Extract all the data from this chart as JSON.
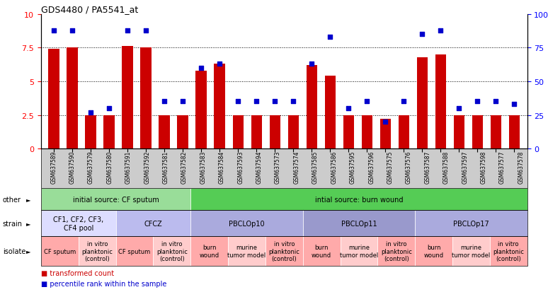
{
  "title": "GDS4480 / PA5541_at",
  "samples": [
    "GSM637589",
    "GSM637590",
    "GSM637579",
    "GSM637580",
    "GSM637591",
    "GSM637592",
    "GSM637581",
    "GSM637582",
    "GSM637583",
    "GSM637584",
    "GSM637593",
    "GSM637594",
    "GSM637573",
    "GSM637574",
    "GSM637585",
    "GSM637586",
    "GSM637595",
    "GSM637596",
    "GSM637575",
    "GSM637576",
    "GSM637587",
    "GSM637588",
    "GSM637597",
    "GSM637598",
    "GSM637577",
    "GSM637578"
  ],
  "bar_values": [
    7.4,
    7.5,
    2.5,
    2.5,
    7.6,
    7.5,
    2.5,
    2.5,
    5.8,
    6.3,
    2.5,
    2.5,
    2.5,
    2.5,
    6.2,
    5.4,
    2.5,
    2.5,
    2.2,
    2.5,
    6.8,
    7.0,
    2.5,
    2.5,
    2.5,
    2.5
  ],
  "dot_values": [
    88,
    88,
    27,
    30,
    88,
    88,
    35,
    35,
    60,
    63,
    35,
    35,
    35,
    35,
    63,
    83,
    30,
    35,
    20,
    35,
    85,
    88,
    30,
    35,
    35,
    33
  ],
  "bar_color": "#cc0000",
  "dot_color": "#0000cc",
  "ylim_left": [
    0,
    10
  ],
  "ylim_right": [
    0,
    100
  ],
  "yticks_left": [
    0,
    2.5,
    5.0,
    7.5,
    10
  ],
  "yticks_right": [
    0,
    25,
    50,
    75,
    100
  ],
  "ytick_labels_left": [
    "0",
    "2.5",
    "5",
    "7.5",
    "10"
  ],
  "ytick_labels_right": [
    "0",
    "25",
    "50",
    "75",
    "100%"
  ],
  "hlines": [
    2.5,
    5.0,
    7.5
  ],
  "annotation_rows": [
    {
      "label": "other",
      "segments": [
        {
          "text": "initial source: CF sputum",
          "start": 0,
          "end": 8,
          "color": "#99dd99"
        },
        {
          "text": "intial source: burn wound",
          "start": 8,
          "end": 26,
          "color": "#55cc55"
        }
      ]
    },
    {
      "label": "strain",
      "segments": [
        {
          "text": "CF1, CF2, CF3,\nCF4 pool",
          "start": 0,
          "end": 4,
          "color": "#ddddff"
        },
        {
          "text": "CFCZ",
          "start": 4,
          "end": 8,
          "color": "#bbbbee"
        },
        {
          "text": "PBCLOp10",
          "start": 8,
          "end": 14,
          "color": "#aaaadd"
        },
        {
          "text": "PBCLOp11",
          "start": 14,
          "end": 20,
          "color": "#9999cc"
        },
        {
          "text": "PBCLOp17",
          "start": 20,
          "end": 26,
          "color": "#aaaadd"
        }
      ]
    },
    {
      "label": "isolate",
      "segments": [
        {
          "text": "CF sputum",
          "start": 0,
          "end": 2,
          "color": "#ffaaaa"
        },
        {
          "text": "in vitro\nplanktonic\n(control)",
          "start": 2,
          "end": 4,
          "color": "#ffcccc"
        },
        {
          "text": "CF sputum",
          "start": 4,
          "end": 6,
          "color": "#ffaaaa"
        },
        {
          "text": "in vitro\nplanktonic\n(control)",
          "start": 6,
          "end": 8,
          "color": "#ffcccc"
        },
        {
          "text": "burn\nwound",
          "start": 8,
          "end": 10,
          "color": "#ffaaaa"
        },
        {
          "text": "murine\ntumor model",
          "start": 10,
          "end": 12,
          "color": "#ffcccc"
        },
        {
          "text": "in vitro\nplanktonic\n(control)",
          "start": 12,
          "end": 14,
          "color": "#ffaaaa"
        },
        {
          "text": "burn\nwound",
          "start": 14,
          "end": 16,
          "color": "#ffaaaa"
        },
        {
          "text": "murine\ntumor model",
          "start": 16,
          "end": 18,
          "color": "#ffcccc"
        },
        {
          "text": "in vitro\nplanktonic\n(control)",
          "start": 18,
          "end": 20,
          "color": "#ffaaaa"
        },
        {
          "text": "burn\nwound",
          "start": 20,
          "end": 22,
          "color": "#ffaaaa"
        },
        {
          "text": "murine\ntumor model",
          "start": 22,
          "end": 24,
          "color": "#ffcccc"
        },
        {
          "text": "in vitro\nplanktonic\n(control)",
          "start": 24,
          "end": 26,
          "color": "#ffaaaa"
        }
      ]
    }
  ],
  "legend": [
    {
      "label": "transformed count",
      "color": "#cc0000"
    },
    {
      "label": "percentile rank within the sample",
      "color": "#0000cc"
    }
  ],
  "bg_color": "#ffffff",
  "chart_bg": "#ffffff",
  "xtick_bg": "#cccccc"
}
